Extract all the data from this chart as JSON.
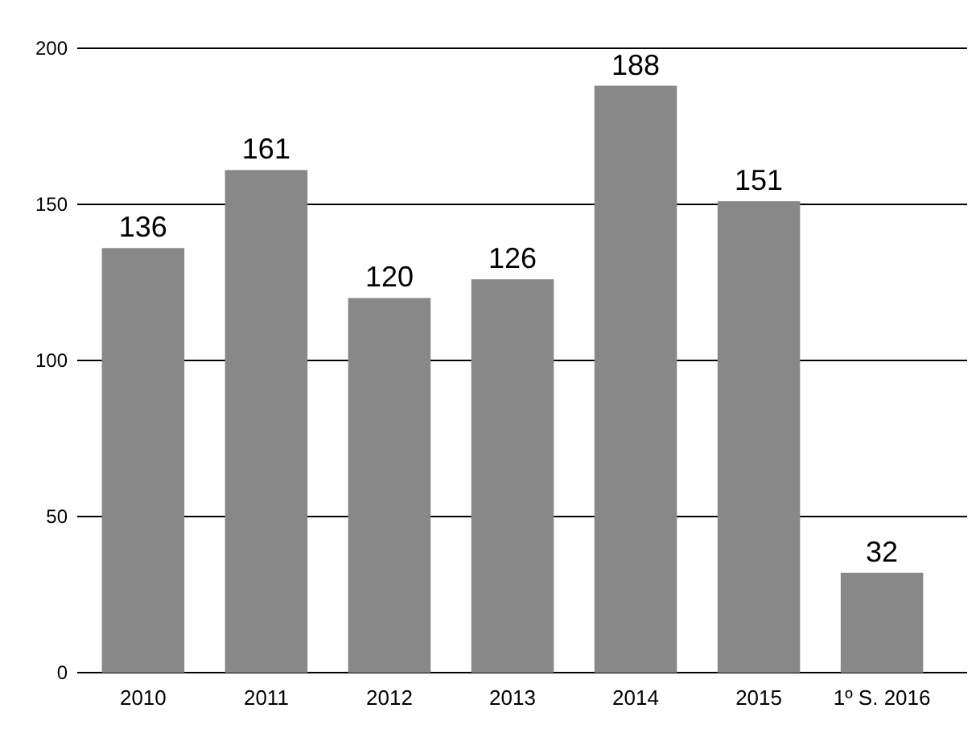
{
  "chart_data": {
    "type": "bar",
    "categories": [
      "2010",
      "2011",
      "2012",
      "2013",
      "2014",
      "2015",
      "1º S. 2016"
    ],
    "values": [
      136,
      161,
      120,
      126,
      188,
      151,
      32
    ],
    "color": "#888888",
    "ylim": [
      0,
      200
    ],
    "yticks": [
      0,
      50,
      100,
      150,
      200
    ],
    "grid": "y",
    "data_labels": true
  }
}
